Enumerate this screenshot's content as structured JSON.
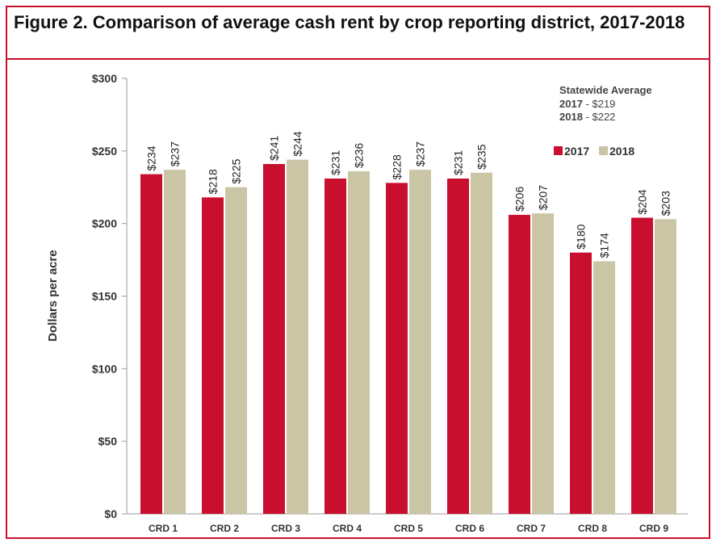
{
  "chart_data": {
    "type": "bar",
    "title": "Figure 2. Comparison of average cash rent by crop reporting district, 2017-2018",
    "y_label": "Dollars per acre",
    "categories": [
      "CRD 1",
      "CRD 2",
      "CRD 3",
      "CRD 4",
      "CRD 5",
      "CRD 6",
      "CRD 7",
      "CRD 8",
      "CRD 9"
    ],
    "series": [
      {
        "name": "2017",
        "color": "#c8102e",
        "values": [
          234,
          218,
          241,
          231,
          228,
          231,
          206,
          180,
          204
        ],
        "value_labels": [
          "$234",
          "$218",
          "$241",
          "$231",
          "$228",
          "$231",
          "$206",
          "$180",
          "$204"
        ]
      },
      {
        "name": "2018",
        "color": "#c9c5a5",
        "values": [
          237,
          225,
          244,
          236,
          237,
          235,
          207,
          174,
          203
        ],
        "value_labels": [
          "$237",
          "$225",
          "$244",
          "$236",
          "$237",
          "$235",
          "$207",
          "$174",
          "$203"
        ]
      }
    ],
    "ylim": [
      0,
      300
    ],
    "yticks": [
      {
        "value": 0,
        "label": "$0"
      },
      {
        "value": 50,
        "label": "$50"
      },
      {
        "value": 100,
        "label": "$100"
      },
      {
        "value": 150,
        "label": "$150"
      },
      {
        "value": 200,
        "label": "$200"
      },
      {
        "value": 250,
        "label": "$250"
      },
      {
        "value": 300,
        "label": "$300"
      }
    ],
    "grid": false,
    "legend": "upper right",
    "annotation": {
      "title": "Statewide Average",
      "lines": [
        {
          "year": "2017",
          "text": "- $219"
        },
        {
          "year": "2018",
          "text": "- $222"
        }
      ]
    }
  }
}
